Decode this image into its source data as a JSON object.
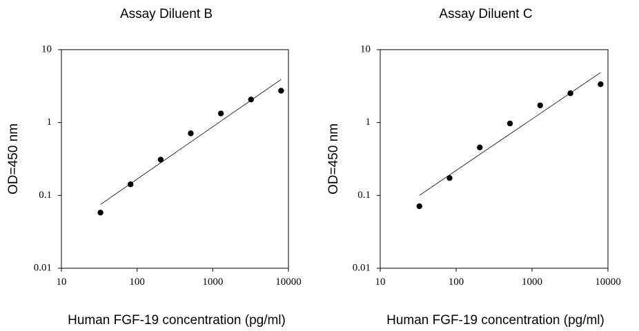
{
  "chart_data": [
    {
      "type": "scatter",
      "title": "Assay Diluent B",
      "xlabel": "Human FGF-19 concentration (pg/ml)",
      "ylabel": "OD=450 nm",
      "xscale": "log",
      "yscale": "log",
      "xlim": [
        10,
        10000
      ],
      "ylim": [
        0.01,
        10
      ],
      "xticks": [
        "10",
        "100",
        "1000",
        "10000"
      ],
      "yticks": [
        "0.01",
        "0.1",
        "1",
        "10"
      ],
      "grid": false,
      "legend": "none",
      "series": [
        {
          "kind": "points",
          "x": [
            32.8,
            82,
            205,
            512,
            1280,
            3200,
            8000
          ],
          "y": [
            0.058,
            0.142,
            0.31,
            0.71,
            1.33,
            2.07,
            2.73
          ]
        },
        {
          "kind": "fit-line",
          "x": [
            32.8,
            8000
          ],
          "y": [
            0.075,
            3.9
          ]
        }
      ]
    },
    {
      "type": "scatter",
      "title": "Assay Diluent C",
      "xlabel": "Human FGF-19 concentration (pg/ml)",
      "ylabel": "OD=450 nm",
      "xscale": "log",
      "yscale": "log",
      "xlim": [
        10,
        10000
      ],
      "ylim": [
        0.01,
        10
      ],
      "xticks": [
        "10",
        "100",
        "1000",
        "10000"
      ],
      "yticks": [
        "0.01",
        "0.1",
        "1",
        "10"
      ],
      "grid": false,
      "legend": "none",
      "series": [
        {
          "kind": "points",
          "x": [
            32.8,
            82,
            205,
            512,
            1280,
            3200,
            8000
          ],
          "y": [
            0.071,
            0.173,
            0.455,
            0.97,
            1.72,
            2.52,
            3.35
          ]
        },
        {
          "kind": "fit-line",
          "x": [
            32.8,
            8000
          ],
          "y": [
            0.1,
            4.85
          ]
        }
      ]
    }
  ]
}
